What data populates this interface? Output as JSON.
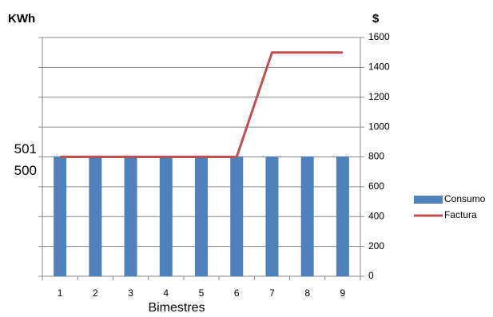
{
  "chart_data": {
    "type": "bar-line",
    "y_title": "KWh",
    "y2_title": "$",
    "x_title": "Bimestres",
    "categories": [
      "1",
      "2",
      "3",
      "4",
      "5",
      "6",
      "7",
      "8",
      "9"
    ],
    "series": [
      {
        "name": "Consumo",
        "type": "bar",
        "color": "#4f81bd",
        "values": [
          500.7,
          500.7,
          500.7,
          500.7,
          500.7,
          500.7,
          500.7,
          500.7,
          500.7
        ]
      },
      {
        "name": "Factura",
        "type": "line",
        "axis": "y2",
        "color": "#c0504d",
        "values": [
          800,
          800,
          800,
          800,
          800,
          800,
          1500,
          1500,
          1500
        ]
      }
    ],
    "ylim": [
      495.15,
      506.2
    ],
    "yticks": [
      500,
      501
    ],
    "y2lim": [
      0,
      1600
    ],
    "y2ticks": [
      0,
      200,
      400,
      600,
      800,
      1000,
      1200,
      1400,
      1600
    ],
    "grid": true,
    "legend": "right"
  }
}
